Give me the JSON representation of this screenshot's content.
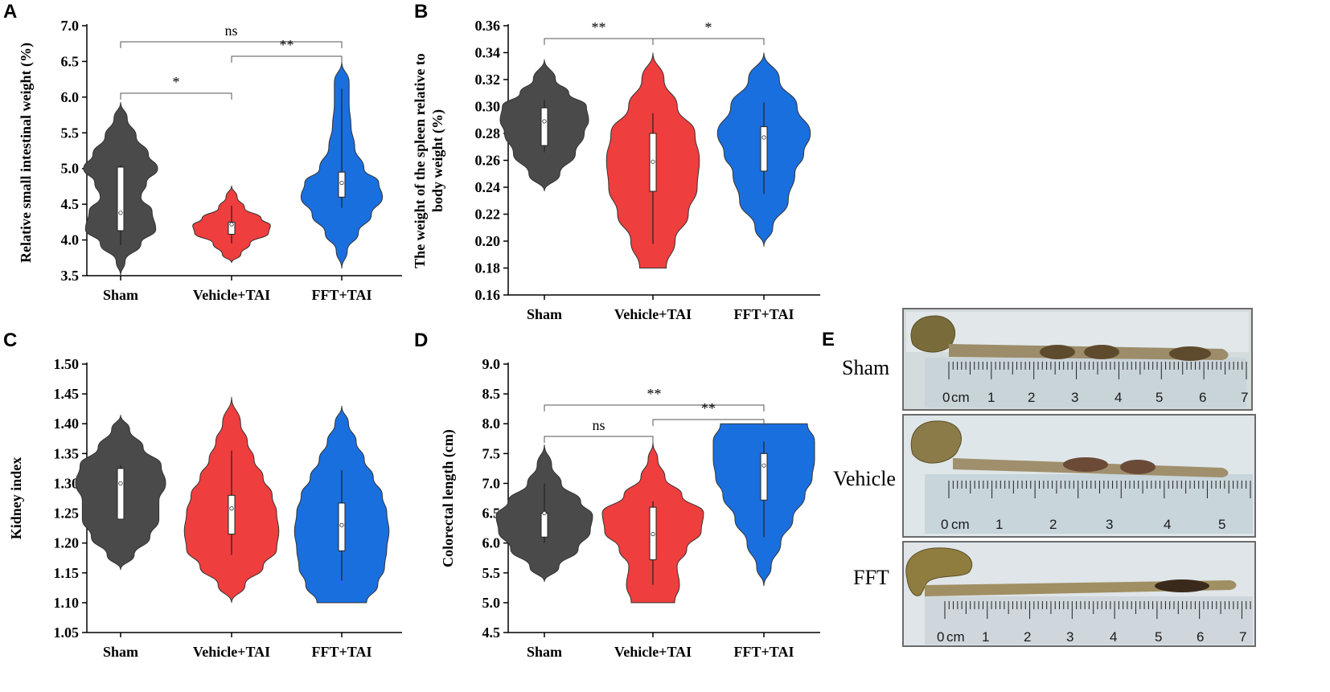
{
  "colors": {
    "sham": "#4a4a4a",
    "vehicle": "#ef3e3e",
    "fft": "#1a6fdf"
  },
  "chart_data": [
    {
      "panel": "A",
      "type": "violin",
      "ylabel": "Relative small intestinal weight (%)",
      "categories": [
        "Sham",
        "Vehicle+TAI",
        "FFT+TAI"
      ],
      "ylim": [
        3.5,
        7.0
      ],
      "yticks": [
        "3.5",
        "4.0",
        "4.5",
        "5.0",
        "5.5",
        "6.0",
        "6.5",
        "7.0"
      ],
      "groups": [
        {
          "name": "Sham",
          "min": 3.5,
          "max": 5.93,
          "q1": 4.13,
          "median": 4.38,
          "q3": 5.02,
          "whisker_low": 3.93,
          "whisker_high": 5.05
        },
        {
          "name": "Vehicle+TAI",
          "min": 3.68,
          "max": 4.76,
          "q1": 4.08,
          "median": 4.22,
          "q3": 4.25,
          "whisker_low": 3.95,
          "whisker_high": 4.48
        },
        {
          "name": "FFT+TAI",
          "min": 3.6,
          "max": 6.5,
          "q1": 4.6,
          "median": 4.8,
          "q3": 4.95,
          "whisker_low": 4.45,
          "whisker_high": 6.12
        }
      ],
      "violin_shape": {
        "Sham": {
          "ys": [
            3.5,
            3.7,
            3.95,
            4.15,
            4.4,
            4.6,
            4.8,
            5.0,
            5.2,
            5.45,
            5.7,
            5.93
          ],
          "ws": [
            0,
            0.12,
            0.55,
            0.95,
            0.85,
            0.55,
            0.7,
            1.0,
            0.75,
            0.42,
            0.18,
            0
          ]
        },
        "Vehicle+TAI": {
          "ys": [
            3.68,
            3.8,
            3.95,
            4.1,
            4.2,
            4.3,
            4.45,
            4.6,
            4.76
          ],
          "ws": [
            0,
            0.25,
            0.5,
            1.0,
            1.05,
            0.8,
            0.35,
            0.15,
            0
          ]
        },
        "FFT+TAI": {
          "ys": [
            3.6,
            3.85,
            4.1,
            4.35,
            4.6,
            4.8,
            5.0,
            5.3,
            5.6,
            5.9,
            6.2,
            6.5
          ],
          "ws": [
            0,
            0.15,
            0.45,
            0.8,
            1.1,
            1.0,
            0.6,
            0.35,
            0.25,
            0.2,
            0.2,
            0
          ]
        }
      },
      "comparisons": [
        {
          "from": "Sham",
          "to": "FFT+TAI",
          "label": "ns"
        },
        {
          "from": "Vehicle+TAI",
          "to": "FFT+TAI",
          "label": "**"
        },
        {
          "from": "Sham",
          "to": "Vehicle+TAI",
          "label": "*"
        }
      ]
    },
    {
      "panel": "B",
      "type": "violin",
      "ylabel": "The weight of the spleen relative to body weight (%)",
      "ylabel_lines": [
        "The weight of the spleen relative to",
        "body weight (%)"
      ],
      "categories": [
        "Sham",
        "Vehicle+TAI",
        "FFT+TAI"
      ],
      "ylim": [
        0.16,
        0.36
      ],
      "yticks": [
        "0.16",
        "0.18",
        "0.20",
        "0.22",
        "0.24",
        "0.26",
        "0.28",
        "0.30",
        "0.32",
        "0.34",
        "0.36"
      ],
      "groups": [
        {
          "name": "Sham",
          "min": 0.237,
          "max": 0.335,
          "q1": 0.271,
          "median": 0.289,
          "q3": 0.299,
          "whisker_low": 0.266,
          "whisker_high": 0.305
        },
        {
          "name": "Vehicle+TAI",
          "min": 0.18,
          "max": 0.34,
          "q1": 0.237,
          "median": 0.259,
          "q3": 0.28,
          "whisker_low": 0.198,
          "whisker_high": 0.295
        },
        {
          "name": "FFT+TAI",
          "min": 0.196,
          "max": 0.34,
          "q1": 0.252,
          "median": 0.277,
          "q3": 0.285,
          "whisker_low": 0.235,
          "whisker_high": 0.303
        }
      ],
      "violin_shape": {
        "Sham": {
          "ys": [
            0.237,
            0.25,
            0.265,
            0.28,
            0.29,
            0.3,
            0.31,
            0.32,
            0.335
          ],
          "ws": [
            0,
            0.35,
            0.7,
            0.9,
            1.0,
            0.95,
            0.55,
            0.25,
            0
          ]
        },
        "Vehicle+TAI": {
          "ys": [
            0.18,
            0.2,
            0.22,
            0.24,
            0.26,
            0.28,
            0.3,
            0.32,
            0.34
          ],
          "ws": [
            0.3,
            0.5,
            0.8,
            1.0,
            1.05,
            0.95,
            0.55,
            0.25,
            0
          ]
        },
        "FFT+TAI": {
          "ys": [
            0.196,
            0.21,
            0.23,
            0.25,
            0.265,
            0.28,
            0.3,
            0.32,
            0.34
          ],
          "ws": [
            0,
            0.2,
            0.55,
            0.7,
            0.9,
            1.05,
            0.75,
            0.35,
            0
          ]
        }
      },
      "comparisons": [
        {
          "from": "Sham",
          "to": "Vehicle+TAI",
          "label": "**"
        },
        {
          "from": "Vehicle+TAI",
          "to": "FFT+TAI",
          "label": "*"
        }
      ]
    },
    {
      "panel": "C",
      "type": "violin",
      "ylabel": "Kidney index",
      "categories": [
        "Sham",
        "Vehicle+TAI",
        "FFT+TAI"
      ],
      "ylim": [
        1.05,
        1.5
      ],
      "yticks": [
        "1.05",
        "1.10",
        "1.15",
        "1.20",
        "1.25",
        "1.30",
        "1.35",
        "1.40",
        "1.45",
        "1.50"
      ],
      "groups": [
        {
          "name": "Sham",
          "min": 1.155,
          "max": 1.415,
          "q1": 1.24,
          "median": 1.3,
          "q3": 1.325,
          "whisker_low": 1.24,
          "whisker_high": 1.33
        },
        {
          "name": "Vehicle+TAI",
          "min": 1.1,
          "max": 1.445,
          "q1": 1.215,
          "median": 1.258,
          "q3": 1.28,
          "whisker_low": 1.18,
          "whisker_high": 1.355
        },
        {
          "name": "FFT+TAI",
          "min": 1.1,
          "max": 1.43,
          "q1": 1.187,
          "median": 1.23,
          "q3": 1.267,
          "whisker_low": 1.137,
          "whisker_high": 1.322
        }
      ],
      "violin_shape": {
        "Sham": {
          "ys": [
            1.155,
            1.18,
            1.21,
            1.24,
            1.27,
            1.3,
            1.33,
            1.36,
            1.39,
            1.415
          ],
          "ws": [
            0,
            0.3,
            0.65,
            0.85,
            0.85,
            1.0,
            0.9,
            0.5,
            0.2,
            0
          ]
        },
        "Vehicle+TAI": {
          "ys": [
            1.1,
            1.13,
            1.16,
            1.19,
            1.22,
            1.25,
            1.28,
            1.31,
            1.34,
            1.37,
            1.4,
            1.445
          ],
          "ws": [
            0,
            0.3,
            0.7,
            1.0,
            1.05,
            1.0,
            0.9,
            0.7,
            0.5,
            0.35,
            0.2,
            0
          ]
        },
        "FFT+TAI": {
          "ys": [
            1.1,
            1.13,
            1.16,
            1.19,
            1.22,
            1.25,
            1.28,
            1.31,
            1.34,
            1.37,
            1.4,
            1.43
          ],
          "ws": [
            0.55,
            0.8,
            0.95,
            1.0,
            1.05,
            1.0,
            0.9,
            0.7,
            0.5,
            0.32,
            0.15,
            0
          ]
        }
      },
      "comparisons": []
    },
    {
      "panel": "D",
      "type": "violin",
      "ylabel": "Colorectal length (cm)",
      "categories": [
        "Sham",
        "Vehicle+TAI",
        "FFT+TAI"
      ],
      "ylim": [
        4.5,
        9.0
      ],
      "yticks": [
        "4.5",
        "5.0",
        "5.5",
        "6.0",
        "6.5",
        "7.0",
        "7.5",
        "8.0",
        "8.5",
        "9.0"
      ],
      "groups": [
        {
          "name": "Sham",
          "min": 5.35,
          "max": 7.65,
          "q1": 6.1,
          "median": 6.5,
          "q3": 6.5,
          "whisker_low": 6.0,
          "whisker_high": 7.0
        },
        {
          "name": "Vehicle+TAI",
          "min": 5.0,
          "max": 7.68,
          "q1": 5.72,
          "median": 6.15,
          "q3": 6.6,
          "whisker_low": 5.3,
          "whisker_high": 6.7
        },
        {
          "name": "FFT+TAI",
          "min": 5.28,
          "max": 8.0,
          "q1": 6.72,
          "median": 7.3,
          "q3": 7.5,
          "whisker_low": 6.1,
          "whisker_high": 7.7
        }
      ],
      "violin_shape": {
        "Sham": {
          "ys": [
            5.35,
            5.6,
            5.9,
            6.2,
            6.45,
            6.7,
            7.0,
            7.3,
            7.65
          ],
          "ws": [
            0,
            0.3,
            0.7,
            0.95,
            1.0,
            0.75,
            0.35,
            0.15,
            0
          ]
        },
        "Vehicle+TAI": {
          "ys": [
            5.0,
            5.3,
            5.6,
            5.9,
            6.2,
            6.5,
            6.8,
            7.1,
            7.4,
            7.68
          ],
          "ws": [
            0.45,
            0.55,
            0.5,
            0.7,
            1.0,
            1.05,
            0.6,
            0.25,
            0.1,
            0
          ]
        },
        "FFT+TAI": {
          "ys": [
            5.28,
            5.6,
            6.0,
            6.4,
            6.8,
            7.1,
            7.4,
            7.7,
            8.0
          ],
          "ws": [
            0,
            0.15,
            0.35,
            0.6,
            0.85,
            1.0,
            1.05,
            1.05,
            0.9
          ]
        }
      },
      "comparisons": [
        {
          "from": "Sham",
          "to": "FFT+TAI",
          "label": "**"
        },
        {
          "from": "Vehicle+TAI",
          "to": "FFT+TAI",
          "label": "**"
        },
        {
          "from": "Sham",
          "to": "Vehicle+TAI",
          "label": "ns"
        }
      ]
    }
  ],
  "panel_e": {
    "letter": "E",
    "photos": [
      {
        "label": "Sham",
        "ruler": [
          "0",
          "cm",
          "1",
          "2",
          "3",
          "4",
          "5",
          "6",
          "7"
        ]
      },
      {
        "label": "Vehicle",
        "ruler": [
          "0",
          "cm",
          "1",
          "2",
          "3",
          "4",
          "5"
        ]
      },
      {
        "label": "FFT",
        "ruler": [
          "0",
          "cm",
          "1",
          "2",
          "3",
          "4",
          "5",
          "6",
          "7"
        ]
      }
    ]
  }
}
